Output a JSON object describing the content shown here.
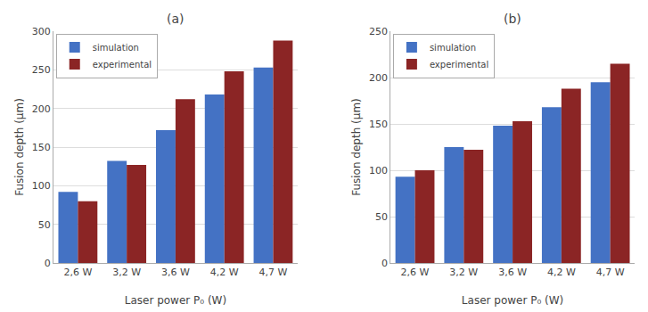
{
  "chart_data": [
    {
      "type": "bar",
      "title": "(a)",
      "categories": [
        "2,6 W",
        "3,2 W",
        "3,6 W",
        "4,2 W",
        "4,7 W"
      ],
      "series": [
        {
          "name": "simulation",
          "color": "#4472C4",
          "values": [
            92,
            132,
            172,
            218,
            253
          ]
        },
        {
          "name": "experimental",
          "color": "#8B2525",
          "values": [
            80,
            127,
            212,
            248,
            288
          ]
        }
      ],
      "xlabel": "Laser power P₀ (W)",
      "ylabel": "Fusion depth (μm)",
      "ylim": [
        0,
        300
      ],
      "yticks": [
        0,
        50,
        100,
        150,
        200,
        250,
        300
      ],
      "grid": true,
      "legend": "upper left"
    },
    {
      "type": "bar",
      "title": "(b)",
      "categories": [
        "2,6 W",
        "3,2 W",
        "3,6 W",
        "4,2 W",
        "4,7 W"
      ],
      "series": [
        {
          "name": "simulation",
          "color": "#4472C4",
          "values": [
            93,
            125,
            148,
            168,
            195
          ]
        },
        {
          "name": "experimental",
          "color": "#8B2525",
          "values": [
            100,
            122,
            153,
            188,
            215
          ]
        }
      ],
      "xlabel": "Laser power P₀ (W)",
      "ylabel": "Fusion depth (μm)",
      "ylim": [
        0,
        250
      ],
      "yticks": [
        0,
        50,
        100,
        150,
        200,
        250
      ],
      "grid": true,
      "legend": "upper left"
    }
  ]
}
